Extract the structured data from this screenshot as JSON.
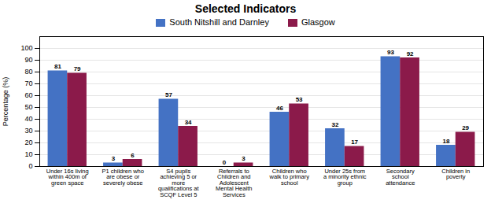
{
  "chart_data": {
    "type": "bar",
    "title": "Selected Indicators",
    "ylabel": "Percentage (%)",
    "categories": [
      "Under 16s living\nwithin 400m of\ngreen space",
      "P1 children who\nare obese or\nseverely obese",
      "S4 pupils\nachieving 5 or\nmore\nqualifications at\nSCQF Level 5",
      "Referrals to\nChildren and\nAdolescent\nMental Health\nServices",
      "Children who\nwalk to primary\nschool",
      "Under 25s from\na minority ethnic\ngroup",
      "Secondary\nschool\nattendance",
      "Children in\npoverty"
    ],
    "series": [
      {
        "name": "South Nitshill and Darnley",
        "color": "#4472C4",
        "values": [
          81,
          3,
          57,
          0,
          46,
          32,
          93,
          18
        ]
      },
      {
        "name": "Glasgow",
        "color": "#8B1A4A",
        "values": [
          79,
          6,
          34,
          3,
          53,
          17,
          92,
          29
        ]
      }
    ],
    "ylim": [
      0,
      110
    ],
    "yticks": [
      0,
      10,
      20,
      30,
      40,
      50,
      60,
      70,
      80,
      90,
      100
    ],
    "grid": true,
    "data_labels": true,
    "legend": "top"
  }
}
